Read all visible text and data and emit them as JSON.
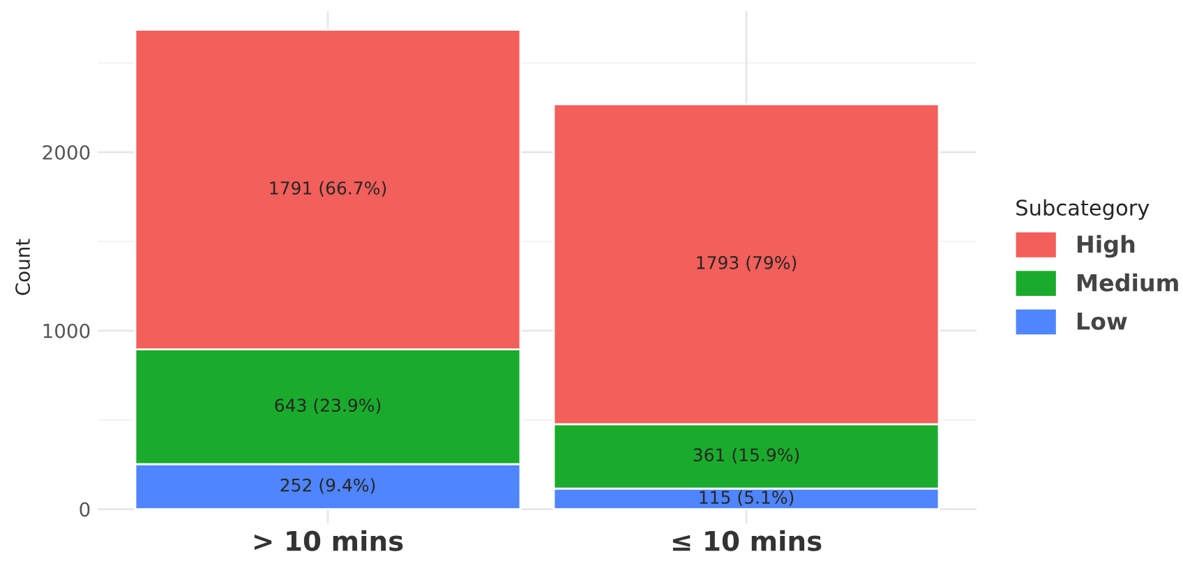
{
  "chart_data": {
    "type": "bar",
    "stacked": true,
    "ylabel": "Count",
    "legend_title": "Subcategory",
    "legend": "right",
    "categories": [
      "> 10 mins",
      "≤ 10 mins"
    ],
    "series": [
      {
        "name": "Low",
        "color": "#4f85ff",
        "values": [
          252,
          115
        ],
        "value_labels": [
          "252 (9.4%)",
          "115 (5.1%)"
        ]
      },
      {
        "name": "Medium",
        "color": "#1aab2c",
        "values": [
          643,
          361
        ],
        "value_labels": [
          "643 (23.9%)",
          "361 (15.9%)"
        ]
      },
      {
        "name": "High",
        "color": "#f35f5a",
        "values": [
          1791,
          1793
        ],
        "value_labels": [
          "1791 (66.7%)",
          "1793 (79%)"
        ]
      }
    ],
    "ylim": [
      -80,
      2790
    ],
    "yticks": [
      0,
      1000,
      2000
    ],
    "grid": true
  }
}
